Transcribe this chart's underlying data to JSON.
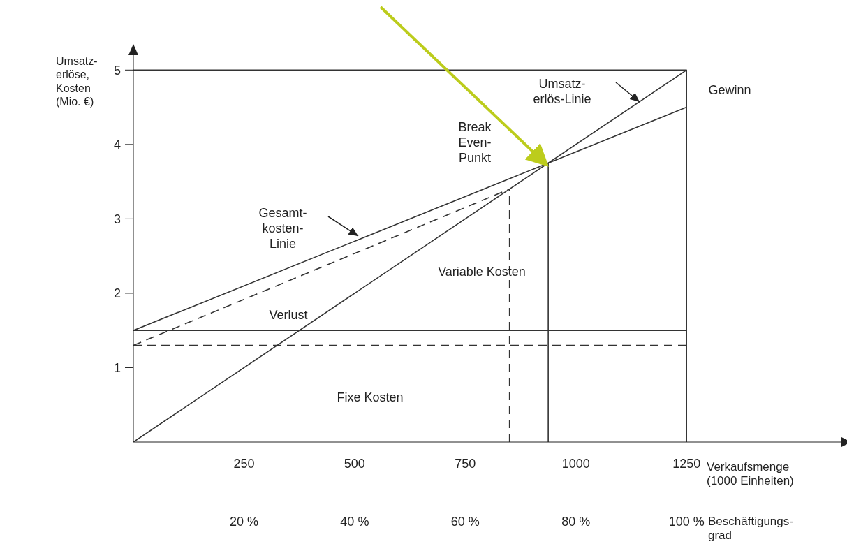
{
  "chart_data": {
    "type": "line",
    "xlabel": "Verkaufsmenge\n(1000 Einheiten)",
    "ylabel": "Umsatz-\nerlöse,\nKosten\n(Mio. €)",
    "x2label": "Beschäftigungs-\ngrad",
    "xlim": [
      0,
      1600
    ],
    "ylim": [
      0,
      5.2
    ],
    "xticks": [
      250,
      500,
      750,
      1000,
      1250
    ],
    "yticks": [
      1,
      2,
      3,
      4,
      5
    ],
    "x2lim": [
      0,
      128
    ],
    "x2ticks": [
      {
        "value": 20,
        "label": "20 %"
      },
      {
        "value": 40,
        "label": "40 %"
      },
      {
        "value": 60,
        "label": "60 %"
      },
      {
        "value": 80,
        "label": "80 %"
      },
      {
        "value": 100,
        "label": "100 %"
      }
    ],
    "grid": false,
    "marker": "none",
    "series": [
      {
        "color": "#333333",
        "x": [
          0,
          1250
        ],
        "values": [
          0,
          5
        ],
        "line_style": "solid"
      },
      {
        "color": "#333333",
        "x": [
          0,
          1250
        ],
        "values": [
          1.5,
          4.5
        ],
        "line_style": "solid"
      },
      {
        "color": "#333333",
        "x": [
          0,
          1250
        ],
        "values": [
          1.5,
          1.5
        ],
        "line_style": "solid"
      },
      {
        "color": "#333333",
        "x": [
          0,
          850
        ],
        "values": [
          1.3,
          3.4
        ],
        "line_style": "dashed"
      },
      {
        "color": "#333333",
        "x": [
          0,
          1250
        ],
        "values": [
          1.3,
          1.3
        ],
        "line_style": "dashed"
      },
      {
        "color": "#333333",
        "x": [
          850,
          850
        ],
        "values": [
          0,
          3.4
        ],
        "line_style": "dashed"
      },
      {
        "color": "#333333",
        "x": [
          937.5,
          937.5
        ],
        "values": [
          0,
          3.75
        ],
        "line_style": "solid"
      },
      {
        "color": "#333333",
        "x": [
          0,
          1250,
          1250
        ],
        "values": [
          5,
          5,
          0
        ],
        "line_style": "solid"
      }
    ],
    "annotations": [
      "Gewinn",
      "Umsatz-\nerlös-Linie",
      "Break\nEven-\nPunkt",
      "Gesamt-\nkosten-\nLinie",
      "Variable Kosten",
      "Verlust",
      "Fixe Kosten"
    ]
  }
}
